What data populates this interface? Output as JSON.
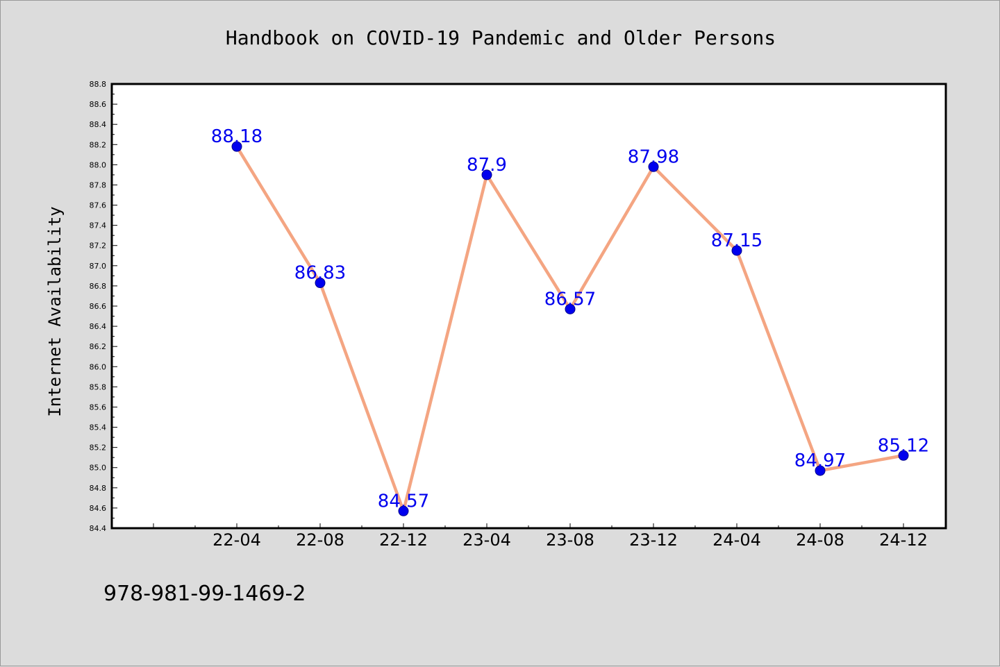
{
  "chart_data": {
    "type": "line",
    "title": "Handbook on COVID-19 Pandemic and Older Persons",
    "xlabel": "",
    "ylabel": "Internet Availability",
    "categories": [
      "22-04",
      "22-08",
      "22-12",
      "23-04",
      "23-08",
      "23-12",
      "24-04",
      "24-08",
      "24-12"
    ],
    "series": [
      {
        "values": [
          88.18,
          86.83,
          84.57,
          87.9,
          86.57,
          87.98,
          87.15,
          84.97,
          85.12
        ],
        "labels": [
          "88.18",
          "86.83",
          "84.57",
          "87.9",
          "86.57",
          "87.98",
          "87.15",
          "84.97",
          "85.12"
        ],
        "line_color": "#f4a582",
        "marker_color": "#0000ee",
        "label_color": "#0000ee"
      }
    ],
    "ylim": [
      84.4,
      88.8
    ],
    "yticks": [
      "84.4",
      "84.6",
      "84.8",
      "85.0",
      "85.2",
      "85.4",
      "85.6",
      "85.8",
      "86.0",
      "86.2",
      "86.4",
      "86.6",
      "86.8",
      "87.0",
      "87.2",
      "87.4",
      "87.6",
      "87.8",
      "88.0",
      "88.2",
      "88.4",
      "88.6",
      "88.8"
    ],
    "grid": false,
    "legend": "none"
  },
  "footer_text": "978-981-99-1469-2"
}
